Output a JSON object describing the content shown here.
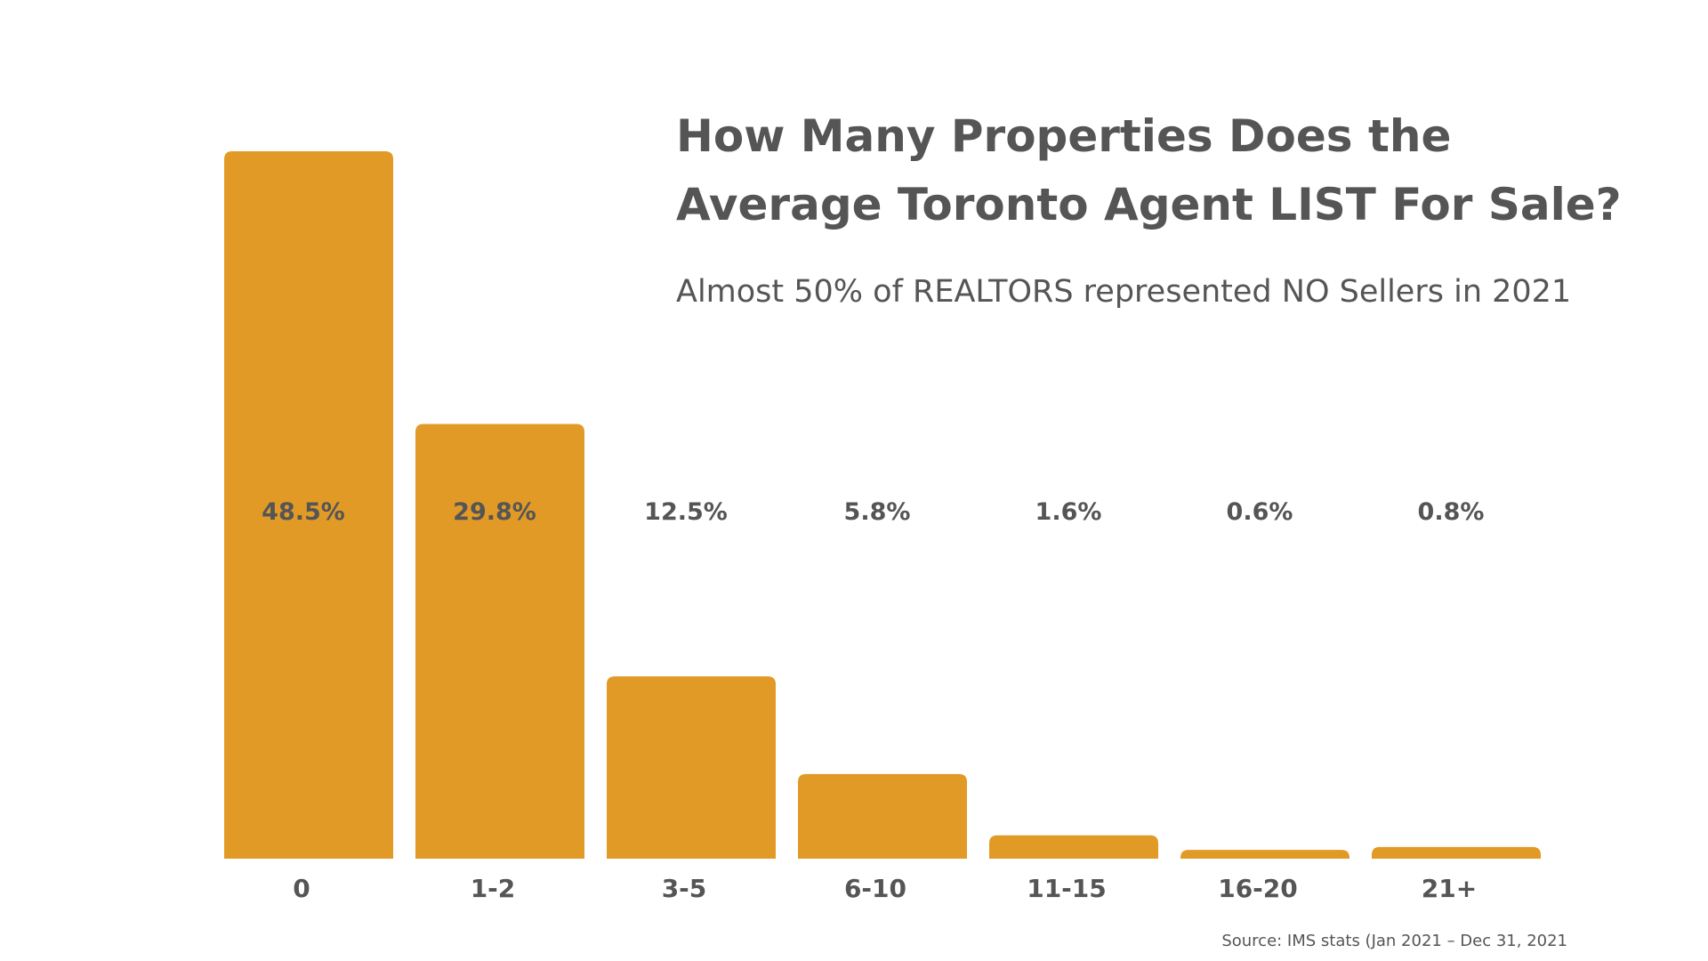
{
  "chart_data": {
    "type": "bar",
    "title_lines": [
      "How Many Properties Does the",
      "Average Toronto Agent LIST For Sale?"
    ],
    "subtitle": "Almost 50% of REALTORS represented NO Sellers in 2021",
    "xlabel": "",
    "ylabel": "",
    "categories": [
      "0",
      "1-2",
      "3-5",
      "6-10",
      "11-15",
      "16-20",
      "21+"
    ],
    "values": [
      48.5,
      29.8,
      12.5,
      5.8,
      1.6,
      0.6,
      0.8
    ],
    "value_labels": [
      "48.5%",
      "29.8%",
      "12.5%",
      "5.8%",
      "1.6%",
      "0.6%",
      "0.8%"
    ],
    "ylim": [
      0,
      48.5
    ],
    "grid": false,
    "legend": "none",
    "source": "Source: IMS stats (Jan 2021 – Dec 31, 2021",
    "colors": {
      "bar": "#E29A27",
      "text": "#555555",
      "background": "#FFFFFF"
    }
  }
}
